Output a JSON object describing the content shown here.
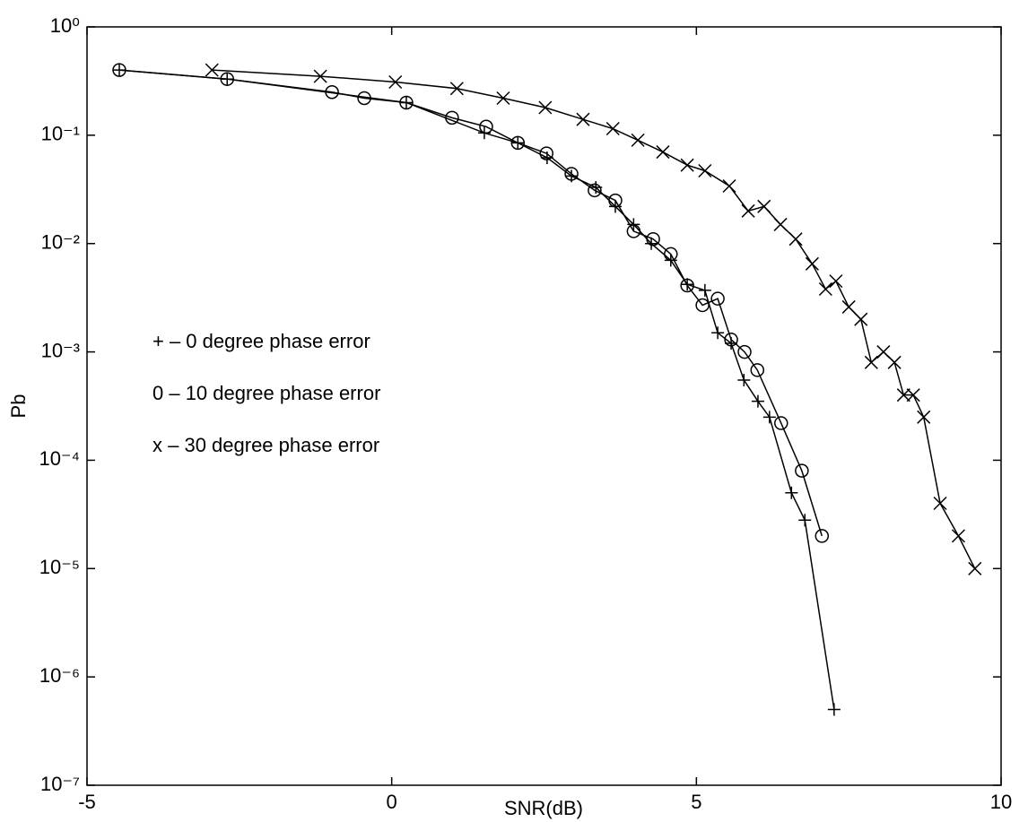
{
  "chart_data": {
    "type": "line",
    "x_label": "SNR(dB)",
    "y_label": "Pb",
    "log_y": true,
    "grid": false,
    "legend": "middle left",
    "xlim": [
      -5,
      10
    ],
    "xticks": [
      -5,
      0,
      5,
      10
    ],
    "ylim": [
      1e-07,
      1
    ],
    "yticks": [
      {
        "value": 1,
        "label": "10⁰"
      },
      {
        "value": 0.1,
        "label": "10⁻¹"
      },
      {
        "value": 0.01,
        "label": "10⁻²"
      },
      {
        "value": 0.001,
        "label": "10⁻³"
      },
      {
        "value": 0.0001,
        "label": "10⁻⁴"
      },
      {
        "value": 1e-05,
        "label": "10⁻⁵"
      },
      {
        "value": 1e-06,
        "label": "10⁻⁶"
      },
      {
        "value": 1e-07,
        "label": "10⁻⁷"
      }
    ],
    "series": [
      {
        "name": "+ –  0 degree phase error",
        "color": "#000000",
        "marker": "+",
        "x": [
          -4.47,
          -2.7,
          0.24,
          1.52,
          2.07,
          2.55,
          2.95,
          3.35,
          3.67,
          3.97,
          4.26,
          4.58,
          4.85,
          5.14,
          5.35,
          5.57,
          5.78,
          6.01,
          6.2,
          6.56,
          6.78,
          7.26
        ],
        "values": [
          0.4,
          0.33,
          0.2,
          0.105,
          0.085,
          0.062,
          0.042,
          0.033,
          0.022,
          0.015,
          0.01,
          0.007,
          0.0042,
          0.0037,
          0.0015,
          0.0012,
          0.00055,
          0.00035,
          0.00025,
          5e-05,
          2.8e-05,
          5e-07
        ]
      },
      {
        "name": "0 – 10 degree phase error",
        "color": "#000000",
        "marker": "o",
        "x": [
          -4.47,
          -2.7,
          -0.98,
          -0.45,
          0.24,
          0.99,
          1.55,
          2.07,
          2.54,
          2.95,
          3.33,
          3.67,
          3.97,
          4.29,
          4.58,
          4.85,
          5.1,
          5.35,
          5.57,
          5.79,
          6.0,
          6.39,
          6.73,
          7.06
        ],
        "values": [
          0.4,
          0.33,
          0.25,
          0.22,
          0.2,
          0.145,
          0.12,
          0.085,
          0.068,
          0.044,
          0.031,
          0.025,
          0.013,
          0.011,
          0.008,
          0.0041,
          0.0027,
          0.0031,
          0.0013,
          0.001,
          0.00068,
          0.00022,
          8e-05,
          2e-05
        ]
      },
      {
        "name": "x – 30 degree phase error",
        "color": "#000000",
        "marker": "x",
        "x": [
          -2.95,
          -1.17,
          0.06,
          1.07,
          1.83,
          2.52,
          3.14,
          3.63,
          4.04,
          4.45,
          4.85,
          5.14,
          5.54,
          5.85,
          6.11,
          6.38,
          6.63,
          6.9,
          7.12,
          7.29,
          7.5,
          7.7,
          7.87,
          8.07,
          8.25,
          8.4,
          8.56,
          8.73,
          9.0,
          9.3,
          9.57
        ],
        "values": [
          0.4,
          0.35,
          0.31,
          0.27,
          0.22,
          0.18,
          0.14,
          0.115,
          0.09,
          0.07,
          0.053,
          0.047,
          0.034,
          0.02,
          0.022,
          0.015,
          0.011,
          0.0065,
          0.0038,
          0.0045,
          0.0026,
          0.002,
          0.0008,
          0.001,
          0.0008,
          0.0004,
          0.0004,
          0.00025,
          4e-05,
          2e-05,
          1e-05
        ]
      }
    ]
  }
}
